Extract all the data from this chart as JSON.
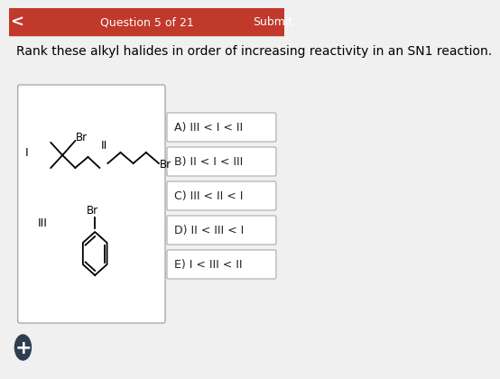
{
  "header_bg": "#c0392b",
  "header_text": "Question 5 of 21",
  "header_submit": "Submit",
  "header_text_color": "#ffffff",
  "body_bg": "#f0f0f0",
  "question_text": "Rank these alkyl halides in order of increasing reactivity in an SN1 reaction.",
  "question_fontsize": 10.0,
  "question_text_color": "#000000",
  "box_bg": "#ffffff",
  "box_border": "#aaaaaa",
  "answer_options": [
    "A) III < I < II",
    "B) II < I < III",
    "C) III < II < I",
    "D) II < III < I",
    "E) I < III < II"
  ],
  "answer_bg": "#ffffff",
  "answer_border": "#aaaaaa",
  "answer_text_color": "#222222",
  "answer_fontsize": 9.0,
  "plus_button_color": "#2c3e50",
  "plus_text_color": "#ffffff",
  "nav_arrow": "<"
}
